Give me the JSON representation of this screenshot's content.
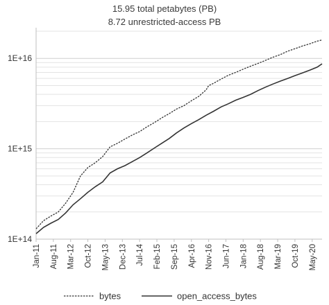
{
  "chart_data": {
    "type": "line",
    "title": "15.95 total petabytes (PB)",
    "subtitle": "8.72 unrestricted-access PB",
    "y_scale": "log",
    "ylim": [
      100000000000000.0,
      2e+16
    ],
    "y_ticks": [
      "1E+14",
      "1E+15",
      "1E+16"
    ],
    "y_tick_values": [
      100000000000000.0,
      1000000000000000.0,
      1e+16
    ],
    "x_tick_labels": [
      "Jan-11",
      "Aug-11",
      "Mar-12",
      "Oct-12",
      "May-13",
      "Dec-13",
      "Jul-14",
      "Feb-15",
      "Sep-15",
      "Apr-16",
      "Nov-16",
      "Jun-17",
      "Jan-18",
      "Aug-18",
      "Mar-19",
      "Oct-19",
      "May-20"
    ],
    "x_range": [
      "2011-01",
      "2020-09"
    ],
    "grid": "horizontal, log minor",
    "legend_position": "bottom",
    "colors": {
      "axis": "#bfbfbf",
      "grid": "#d9d9d9",
      "line": "#333333"
    },
    "series": [
      {
        "name": "bytes",
        "style": "dashed",
        "x": [
          "2011-01",
          "2011-04",
          "2011-07",
          "2011-10",
          "2012-01",
          "2012-04",
          "2012-07",
          "2012-10",
          "2013-01",
          "2013-04",
          "2013-07",
          "2013-10",
          "2014-01",
          "2014-04",
          "2014-07",
          "2014-10",
          "2015-01",
          "2015-04",
          "2015-07",
          "2015-10",
          "2016-01",
          "2016-04",
          "2016-07",
          "2016-10",
          "2016-11",
          "2017-01",
          "2017-04",
          "2017-07",
          "2017-10",
          "2018-01",
          "2018-04",
          "2018-07",
          "2018-10",
          "2019-01",
          "2019-04",
          "2019-07",
          "2019-10",
          "2020-01",
          "2020-04",
          "2020-07",
          "2020-09"
        ],
        "values": [
          130000000000000.0,
          160000000000000.0,
          180000000000000.0,
          200000000000000.0,
          250000000000000.0,
          330000000000000.0,
          500000000000000.0,
          620000000000000.0,
          700000000000000.0,
          820000000000000.0,
          1050000000000000.0,
          1150000000000000.0,
          1280000000000000.0,
          1420000000000000.0,
          1550000000000000.0,
          1750000000000000.0,
          1950000000000000.0,
          2200000000000000.0,
          2450000000000000.0,
          2750000000000000.0,
          3000000000000000.0,
          3400000000000000.0,
          3800000000000000.0,
          4500000000000000.0,
          5000000000000000.0,
          5300000000000000.0,
          5900000000000000.0,
          6500000000000000.0,
          7000000000000000.0,
          7600000000000000.0,
          8200000000000000.0,
          8800000000000000.0,
          9500000000000000.0,
          1.03e+16,
          1.1e+16,
          1.2e+16,
          1.28e+16,
          1.37e+16,
          1.45e+16,
          1.55e+16,
          1.6e+16
        ]
      },
      {
        "name": "open_access_bytes",
        "style": "solid",
        "x": [
          "2011-01",
          "2011-04",
          "2011-07",
          "2011-10",
          "2012-01",
          "2012-04",
          "2012-07",
          "2012-10",
          "2013-01",
          "2013-04",
          "2013-07",
          "2013-10",
          "2014-01",
          "2014-04",
          "2014-07",
          "2014-10",
          "2015-01",
          "2015-04",
          "2015-07",
          "2015-10",
          "2016-01",
          "2016-04",
          "2016-07",
          "2016-10",
          "2017-01",
          "2017-04",
          "2017-07",
          "2017-10",
          "2018-01",
          "2018-04",
          "2018-07",
          "2018-10",
          "2019-01",
          "2019-04",
          "2019-07",
          "2019-10",
          "2020-01",
          "2020-04",
          "2020-07",
          "2020-09"
        ],
        "values": [
          115000000000000.0,
          135000000000000.0,
          150000000000000.0,
          165000000000000.0,
          195000000000000.0,
          240000000000000.0,
          280000000000000.0,
          330000000000000.0,
          380000000000000.0,
          430000000000000.0,
          540000000000000.0,
          600000000000000.0,
          650000000000000.0,
          720000000000000.0,
          800000000000000.0,
          900000000000000.0,
          1020000000000000.0,
          1150000000000000.0,
          1300000000000000.0,
          1500000000000000.0,
          1700000000000000.0,
          1900000000000000.0,
          2100000000000000.0,
          2350000000000000.0,
          2600000000000000.0,
          2900000000000000.0,
          3150000000000000.0,
          3450000000000000.0,
          3700000000000000.0,
          4000000000000000.0,
          4400000000000000.0,
          4800000000000000.0,
          5200000000000000.0,
          5600000000000000.0,
          6000000000000000.0,
          6450000000000000.0,
          6900000000000000.0,
          7400000000000000.0,
          8000000000000000.0,
          8700000000000000.0
        ]
      }
    ]
  }
}
